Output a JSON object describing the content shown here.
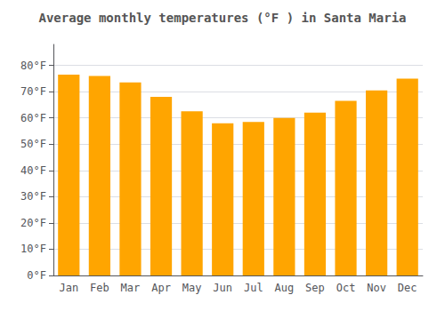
{
  "chart_data": {
    "type": "bar",
    "title": "Average monthly temperatures (°F ) in Santa Maria",
    "categories": [
      "Jan",
      "Feb",
      "Mar",
      "Apr",
      "May",
      "Jun",
      "Jul",
      "Aug",
      "Sep",
      "Oct",
      "Nov",
      "Dec"
    ],
    "values": [
      76.5,
      76.0,
      73.5,
      68.0,
      62.5,
      58.0,
      58.5,
      60.0,
      62.0,
      66.5,
      70.5,
      75.0
    ],
    "color": "#FFA500",
    "ylim": [
      0,
      88
    ],
    "yticks": [
      {
        "value": 0,
        "label": "0°F"
      },
      {
        "value": 10,
        "label": "10°F"
      },
      {
        "value": 20,
        "label": "20°F"
      },
      {
        "value": 30,
        "label": "30°F"
      },
      {
        "value": 40,
        "label": "40°F"
      },
      {
        "value": 50,
        "label": "50°F"
      },
      {
        "value": 60,
        "label": "60°F"
      },
      {
        "value": 70,
        "label": "70°F"
      },
      {
        "value": 80,
        "label": "80°F"
      }
    ],
    "grid": true
  }
}
